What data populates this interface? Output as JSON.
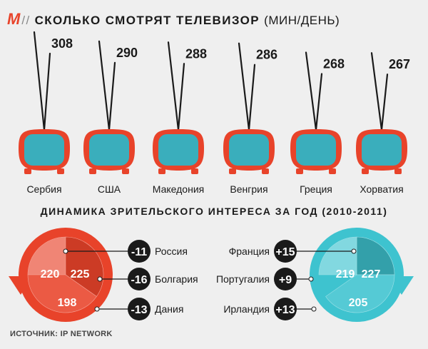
{
  "header": {
    "logo": "М",
    "separator": "//",
    "title": "СКОЛЬКО СМОТРЯТ ТЕЛЕВИЗОР",
    "unit": "(МИН/ДЕНЬ)"
  },
  "colors": {
    "tv_frame": "#e8432a",
    "tv_screen": "#3aaebc",
    "left_circle": "#e8432a",
    "right_circle": "#3ec3cf",
    "badge": "#1a1a1a"
  },
  "chart_data": [
    {
      "type": "bar",
      "categories": [
        "Сербия",
        "США",
        "Македония",
        "Венгрия",
        "Греция",
        "Хорватия"
      ],
      "values": [
        308,
        290,
        288,
        286,
        268,
        267
      ],
      "title": "СКОЛЬКО СМОТРЯТ ТЕЛЕВИЗОР (МИН/ДЕНЬ)",
      "encoding": "antenna height"
    },
    {
      "type": "table",
      "title": "ДИНАМИКА ЗРИТЕЛЬСКОГО ИНТЕРЕСА ЗА ГОД (2010-2011)",
      "groups": [
        {
          "side": "left",
          "color": "#e8432a",
          "items": [
            {
              "country": "Россия",
              "value": 220,
              "change": "-11"
            },
            {
              "country": "Болгария",
              "value": 225,
              "change": "-16"
            },
            {
              "country": "Дания",
              "value": 198,
              "change": "-13"
            }
          ]
        },
        {
          "side": "right",
          "color": "#3ec3cf",
          "items": [
            {
              "country": "Франция",
              "value": 219,
              "change": "+15"
            },
            {
              "country": "Португалия",
              "value": 227,
              "change": "+9"
            },
            {
              "country": "Ирландия",
              "value": 205,
              "change": "+13"
            }
          ]
        }
      ]
    }
  ],
  "source": "ИСТОЧНИК: IP NETWORK"
}
